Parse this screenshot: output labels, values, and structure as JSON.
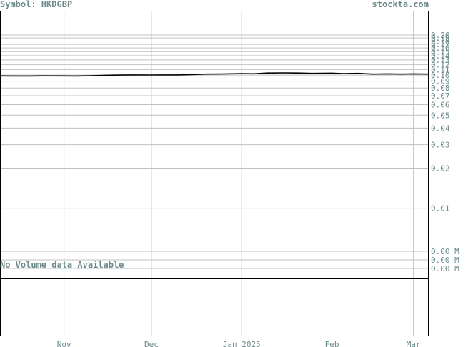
{
  "header": {
    "symbol_text": "Symbol: HKDGBP",
    "site_text": "stockta.com"
  },
  "volume_panel": {
    "no_data_text": "No Volume data Available",
    "tick_labels": [
      "0.00 M",
      "0.00 M",
      "0.00 M"
    ]
  },
  "colors": {
    "grid": "#c0c0c0",
    "axis_text": "#6b8a8a",
    "line": "#000000",
    "frame": "#000000"
  },
  "chart_data": {
    "type": "line",
    "title": "",
    "xlabel": "",
    "ylabel": "",
    "scale": "log",
    "grid": true,
    "ylim": [
      0.0055,
      0.2
    ],
    "xlim": [
      "2024-10-10",
      "2025-03-06"
    ],
    "yticks": [
      0.2,
      0.19,
      0.18,
      0.17,
      0.16,
      0.15,
      0.14,
      0.13,
      0.12,
      0.11,
      0.1,
      0.09,
      0.08,
      0.07,
      0.06,
      0.05,
      0.04,
      0.03,
      0.02,
      0.01
    ],
    "ytick_labels": [
      "0.20",
      "0.19",
      "0.18",
      "0.17",
      "0.16",
      "0.15",
      "0.14",
      "0.13",
      "0.12",
      "0.11",
      "0.10",
      "0.09",
      "0.08",
      "0.07",
      "0.06",
      "0.05",
      "0.04",
      "0.03",
      "0.02",
      "0.01"
    ],
    "xticks": [
      {
        "date": "2024-11-01",
        "label": "Nov"
      },
      {
        "date": "2024-12-01",
        "label": "Dec"
      },
      {
        "date": "2025-01-01",
        "label": "Jan 2025"
      },
      {
        "date": "2025-02-01",
        "label": "Feb"
      },
      {
        "date": "2025-03-01",
        "label": "Mar"
      }
    ],
    "series": [
      {
        "points": [
          [
            "2024-10-10",
            0.0986
          ],
          [
            "2024-10-15",
            0.0984
          ],
          [
            "2024-10-20",
            0.0985
          ],
          [
            "2024-10-25",
            0.0987
          ],
          [
            "2024-11-01",
            0.0986
          ],
          [
            "2024-11-05",
            0.0984
          ],
          [
            "2024-11-10",
            0.0988
          ],
          [
            "2024-11-15",
            0.0997
          ],
          [
            "2024-11-20",
            0.1
          ],
          [
            "2024-11-25",
            0.1003
          ],
          [
            "2024-12-01",
            0.1002
          ],
          [
            "2024-12-05",
            0.1003
          ],
          [
            "2024-12-10",
            0.1003
          ],
          [
            "2024-12-15",
            0.1008
          ],
          [
            "2024-12-20",
            0.1018
          ],
          [
            "2024-12-25",
            0.1019
          ],
          [
            "2025-01-01",
            0.1026
          ],
          [
            "2025-01-05",
            0.1023
          ],
          [
            "2025-01-10",
            0.1037
          ],
          [
            "2025-01-15",
            0.104
          ],
          [
            "2025-01-20",
            0.1037
          ],
          [
            "2025-01-25",
            0.103
          ],
          [
            "2025-02-01",
            0.1034
          ],
          [
            "2025-02-05",
            0.1027
          ],
          [
            "2025-02-10",
            0.103
          ],
          [
            "2025-02-15",
            0.1018
          ],
          [
            "2025-02-20",
            0.1021
          ],
          [
            "2025-02-25",
            0.1018
          ],
          [
            "2025-03-01",
            0.1022
          ],
          [
            "2025-03-06",
            0.1018
          ]
        ]
      }
    ]
  }
}
